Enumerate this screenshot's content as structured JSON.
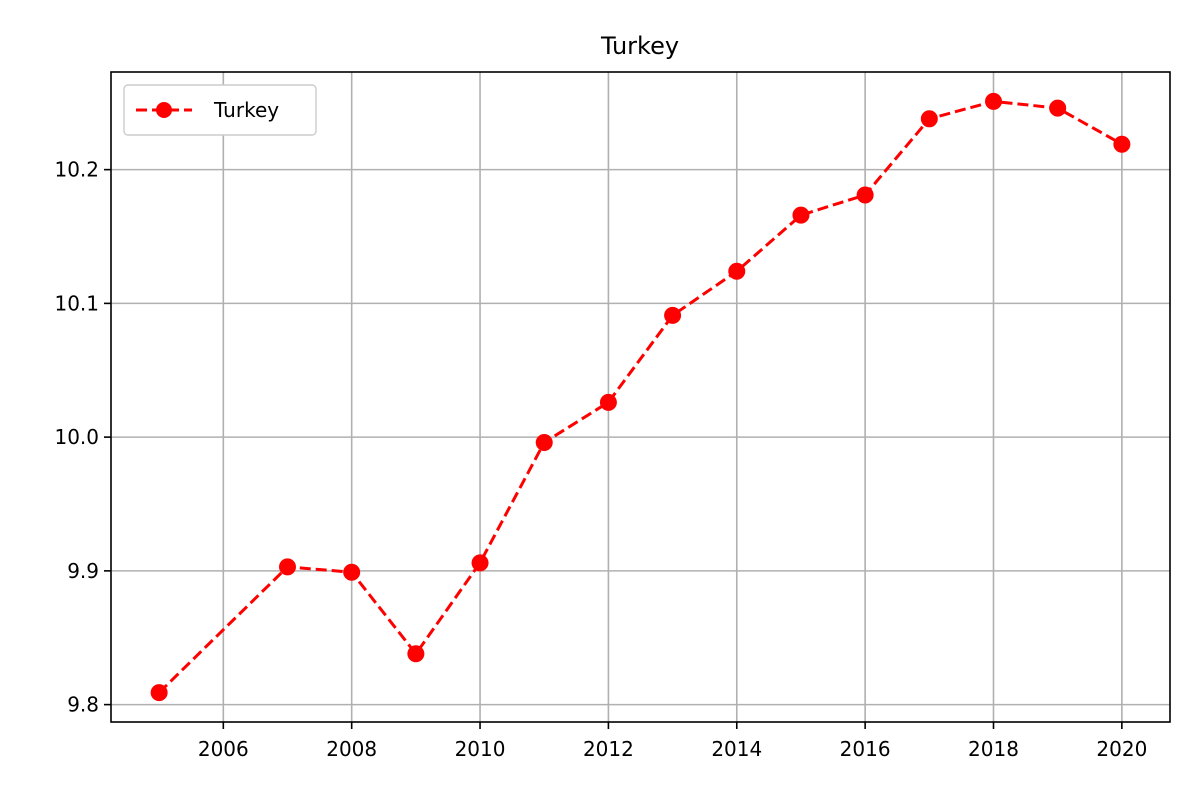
{
  "chart_data": {
    "type": "line",
    "title": "Turkey",
    "xlabel": "",
    "ylabel": "",
    "x": [
      2005,
      2007,
      2008,
      2009,
      2010,
      2011,
      2012,
      2013,
      2014,
      2015,
      2016,
      2017,
      2018,
      2019,
      2020
    ],
    "series": [
      {
        "name": "Turkey",
        "color": "#ff0000",
        "line_style": "dashed",
        "marker": "circle",
        "values": [
          9.809,
          9.903,
          9.899,
          9.838,
          9.906,
          9.996,
          10.026,
          10.091,
          10.124,
          10.166,
          10.181,
          10.238,
          10.251,
          10.246,
          10.219
        ]
      }
    ],
    "x_ticks": [
      2006,
      2008,
      2010,
      2012,
      2014,
      2016,
      2018,
      2020
    ],
    "y_ticks": [
      9.8,
      9.9,
      10.0,
      10.1,
      10.2
    ],
    "y_tick_labels": [
      "9.8",
      "9.9",
      "10.0",
      "10.1",
      "10.2"
    ],
    "xlim": [
      2004.25,
      2020.75
    ],
    "ylim": [
      9.787,
      10.273
    ],
    "grid": true,
    "grid_color": "#b0b0b0",
    "legend_position": "top-left"
  }
}
